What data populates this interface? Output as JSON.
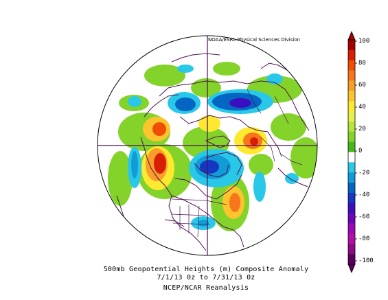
{
  "credit": "NOAA/ESRL Physical Sciences Division",
  "caption": {
    "line1": "500mb Geopotential Heights (m)   Composite Anomaly",
    "line2": "7/1/13 0z  to 7/31/13 0z",
    "line3": "NCEP/NCAR Reanalysis"
  },
  "colorbar": {
    "ticks": [
      "100",
      "80",
      "60",
      "40",
      "20",
      "0",
      "-20",
      "-40",
      "-60",
      "-80",
      "-100"
    ],
    "colors": [
      "#a50000",
      "#d81e05",
      "#f04d05",
      "#f7761c",
      "#fb9d2a",
      "#fdc42d",
      "#fde92f",
      "#e6f04a",
      "#b6e53b",
      "#84d32a",
      "#42b81b",
      "#ffffff",
      "#29c8e8",
      "#119cd7",
      "#0466c2",
      "#1637c2",
      "#3b0fbf",
      "#6b05b8",
      "#9a0ab4",
      "#b20fa7",
      "#8e0a86",
      "#5b005b"
    ]
  },
  "colors": {
    "map_line": "#4b0d52",
    "frame": "#000000"
  }
}
